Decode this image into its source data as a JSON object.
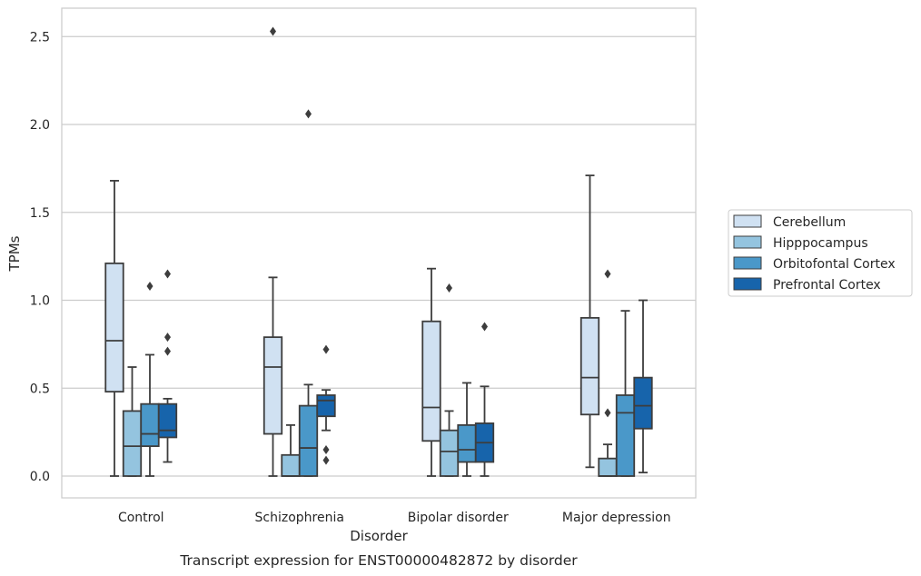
{
  "chart_data": {
    "type": "boxplot",
    "title": "Transcript expression for ENST00000482872 by disorder",
    "xlabel": "Disorder",
    "ylabel": "TPMs",
    "ylim": [
      -0.12,
      2.65
    ],
    "yticks": [
      0.0,
      0.5,
      1.0,
      1.5,
      2.0,
      2.5
    ],
    "ytick_labels": [
      "0.0",
      "0.5",
      "1.0",
      "1.5",
      "2.0",
      "2.5"
    ],
    "categories": [
      "Control",
      "Schizophrenia",
      "Bipolar disorder",
      "Major depression"
    ],
    "grid": "horizontal",
    "legend_position": "right",
    "series": [
      {
        "name": "Cerebellum",
        "color": "#d0e1f2",
        "boxes": [
          {
            "whislo": 0.0,
            "q1": 0.48,
            "med": 0.77,
            "q3": 1.21,
            "whishi": 1.68,
            "fliers": []
          },
          {
            "whislo": 0.0,
            "q1": 0.24,
            "med": 0.62,
            "q3": 0.79,
            "whishi": 1.13,
            "fliers": [
              2.53
            ]
          },
          {
            "whislo": 0.0,
            "q1": 0.2,
            "med": 0.39,
            "q3": 0.88,
            "whishi": 1.18,
            "fliers": []
          },
          {
            "whislo": 0.05,
            "q1": 0.35,
            "med": 0.56,
            "q3": 0.9,
            "whishi": 1.71,
            "fliers": []
          }
        ]
      },
      {
        "name": "Hipppocampus",
        "color": "#94c4df",
        "boxes": [
          {
            "whislo": 0.0,
            "q1": 0.0,
            "med": 0.17,
            "q3": 0.37,
            "whishi": 0.62,
            "fliers": []
          },
          {
            "whislo": 0.0,
            "q1": 0.0,
            "med": 0.0,
            "q3": 0.12,
            "whishi": 0.29,
            "fliers": []
          },
          {
            "whislo": 0.0,
            "q1": 0.0,
            "med": 0.14,
            "q3": 0.26,
            "whishi": 0.37,
            "fliers": [
              1.07
            ]
          },
          {
            "whislo": 0.0,
            "q1": 0.0,
            "med": 0.0,
            "q3": 0.1,
            "whishi": 0.18,
            "fliers": [
              0.36,
              1.15
            ]
          }
        ]
      },
      {
        "name": "Orbitofontal Cortex",
        "color": "#4a98c9",
        "boxes": [
          {
            "whislo": 0.0,
            "q1": 0.17,
            "med": 0.24,
            "q3": 0.41,
            "whishi": 0.69,
            "fliers": [
              1.08
            ]
          },
          {
            "whislo": 0.0,
            "q1": 0.0,
            "med": 0.16,
            "q3": 0.4,
            "whishi": 0.52,
            "fliers": [
              2.06
            ]
          },
          {
            "whislo": 0.0,
            "q1": 0.08,
            "med": 0.15,
            "q3": 0.29,
            "whishi": 0.53,
            "fliers": []
          },
          {
            "whislo": 0.0,
            "q1": 0.0,
            "med": 0.36,
            "q3": 0.46,
            "whishi": 0.94,
            "fliers": []
          }
        ]
      },
      {
        "name": "Prefrontal Cortex",
        "color": "#1764ab",
        "boxes": [
          {
            "whislo": 0.08,
            "q1": 0.22,
            "med": 0.26,
            "q3": 0.41,
            "whishi": 0.44,
            "fliers": [
              0.71,
              0.79,
              1.15
            ]
          },
          {
            "whislo": 0.26,
            "q1": 0.34,
            "med": 0.43,
            "q3": 0.46,
            "whishi": 0.49,
            "fliers": [
              0.09,
              0.15,
              0.72
            ]
          },
          {
            "whislo": 0.0,
            "q1": 0.08,
            "med": 0.19,
            "q3": 0.3,
            "whishi": 0.51,
            "fliers": [
              0.85
            ]
          },
          {
            "whislo": 0.02,
            "q1": 0.27,
            "med": 0.4,
            "q3": 0.56,
            "whishi": 1.0,
            "fliers": []
          }
        ]
      }
    ]
  }
}
